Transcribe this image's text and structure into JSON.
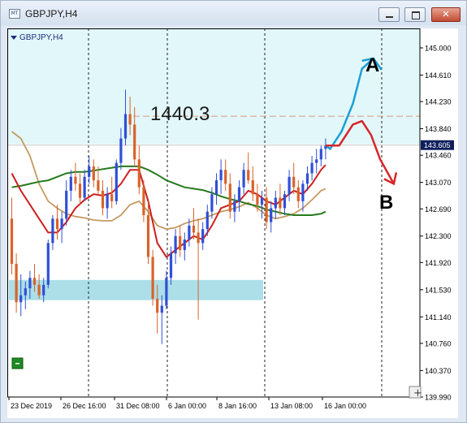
{
  "window": {
    "title": "GBPJPY,H4",
    "app_icon_label": "MT",
    "minimize_icon": "minimize-icon",
    "maximize_icon": "maximize-icon",
    "close_icon": "close-icon"
  },
  "chart_data": {
    "type": "candlestick",
    "symbol_label": "GBPJPY,H4",
    "y_ticks": [
      "145.000",
      "144.610",
      "144.230",
      "143.840",
      "143.460",
      "143.070",
      "142.690",
      "142.300",
      "141.920",
      "141.530",
      "141.140",
      "140.760",
      "140.370",
      "139.990"
    ],
    "y_range": [
      139.99,
      145.0
    ],
    "current_price": "143.605",
    "x_ticks": [
      "23 Dec 2019",
      "26 Dec 16:00",
      "31 Dec 08:00",
      "6 Jan 00:00",
      "8 Jan 16:00",
      "13 Jan 08:00",
      "16 Jan 00:00"
    ],
    "annotations": {
      "level_label": "1440.3",
      "scenario_a": "A",
      "scenario_b": "B"
    },
    "indicator_colors": {
      "ema_fast": "#cc1f1f",
      "ema_mid": "#c49a62",
      "ema_slow": "#267a1e"
    },
    "colors": {
      "bullish_candle": "#2f4fd6",
      "bearish_candle": "#d9632a",
      "supply_zone": "#e2f7f9",
      "demand_zone": "#acdfe7",
      "arrow_a": "#1a9fd4",
      "arrow_b": "#d6262a",
      "resistance_line": "#d99a80"
    },
    "candles": [
      [
        142.55,
        142.85,
        141.75,
        141.9
      ],
      [
        141.9,
        142.05,
        141.2,
        141.35
      ],
      [
        141.35,
        141.75,
        141.15,
        141.45
      ],
      [
        141.45,
        141.65,
        141.25,
        141.55
      ],
      [
        141.55,
        141.8,
        141.4,
        141.7
      ],
      [
        141.7,
        141.9,
        141.5,
        141.6
      ],
      [
        141.6,
        141.75,
        141.4,
        141.45
      ],
      [
        141.45,
        141.7,
        141.35,
        141.6
      ],
      [
        141.6,
        142.25,
        141.55,
        142.2
      ],
      [
        142.2,
        142.6,
        142.1,
        142.55
      ],
      [
        142.55,
        142.75,
        142.25,
        142.4
      ],
      [
        142.4,
        142.65,
        142.2,
        142.55
      ],
      [
        142.55,
        143.1,
        142.45,
        142.95
      ],
      [
        142.95,
        143.25,
        142.8,
        143.15
      ],
      [
        143.15,
        143.35,
        142.95,
        143.05
      ],
      [
        143.05,
        143.2,
        142.75,
        142.85
      ],
      [
        142.85,
        143.25,
        142.8,
        143.15
      ],
      [
        143.15,
        143.45,
        143.05,
        143.3
      ],
      [
        143.3,
        143.4,
        143.0,
        143.1
      ],
      [
        143.1,
        143.3,
        142.9,
        142.95
      ],
      [
        142.95,
        143.1,
        142.6,
        142.7
      ],
      [
        142.7,
        143.0,
        142.55,
        142.9
      ],
      [
        142.9,
        143.15,
        142.7,
        142.8
      ],
      [
        142.8,
        143.4,
        142.75,
        143.35
      ],
      [
        143.35,
        143.85,
        143.25,
        143.7
      ],
      [
        143.7,
        144.4,
        143.6,
        144.05
      ],
      [
        144.05,
        144.3,
        143.75,
        143.9
      ],
      [
        143.9,
        144.15,
        143.3,
        143.4
      ],
      [
        143.4,
        143.6,
        142.9,
        143.0
      ],
      [
        143.0,
        143.1,
        142.5,
        142.6
      ],
      [
        142.6,
        142.8,
        141.9,
        142.0
      ],
      [
        142.0,
        142.1,
        141.3,
        141.4
      ],
      [
        141.4,
        141.6,
        140.9,
        141.2
      ],
      [
        141.2,
        141.45,
        140.75,
        141.3
      ],
      [
        141.3,
        141.8,
        141.25,
        141.7
      ],
      [
        141.7,
        142.15,
        141.6,
        142.05
      ],
      [
        142.05,
        142.4,
        141.9,
        142.3
      ],
      [
        142.3,
        142.45,
        142.0,
        142.1
      ],
      [
        142.1,
        142.35,
        141.95,
        142.25
      ],
      [
        142.25,
        142.55,
        142.15,
        142.45
      ],
      [
        142.45,
        142.7,
        142.25,
        142.35
      ],
      [
        142.35,
        142.55,
        141.1,
        142.2
      ],
      [
        142.2,
        142.5,
        142.1,
        142.4
      ],
      [
        142.4,
        142.75,
        142.3,
        142.65
      ],
      [
        142.65,
        143.0,
        142.55,
        142.9
      ],
      [
        142.9,
        143.2,
        142.75,
        143.1
      ],
      [
        143.1,
        143.4,
        142.9,
        143.25
      ],
      [
        143.25,
        143.4,
        142.95,
        143.05
      ],
      [
        143.05,
        143.2,
        142.55,
        142.65
      ],
      [
        142.65,
        142.9,
        142.5,
        142.8
      ],
      [
        142.8,
        143.1,
        142.65,
        143.0
      ],
      [
        143.0,
        143.35,
        142.9,
        143.25
      ],
      [
        143.25,
        143.5,
        143.05,
        143.1
      ],
      [
        143.1,
        143.3,
        142.8,
        142.9
      ],
      [
        142.9,
        143.05,
        142.65,
        142.75
      ],
      [
        142.75,
        142.95,
        142.55,
        142.85
      ],
      [
        142.85,
        143.0,
        142.4,
        142.5
      ],
      [
        142.5,
        142.8,
        142.35,
        142.7
      ],
      [
        142.7,
        142.95,
        142.55,
        142.85
      ],
      [
        142.85,
        143.05,
        142.6,
        142.7
      ],
      [
        142.7,
        142.95,
        142.6,
        142.9
      ],
      [
        142.9,
        143.25,
        142.8,
        143.15
      ],
      [
        143.15,
        143.35,
        142.9,
        143.0
      ],
      [
        143.0,
        143.1,
        142.7,
        142.8
      ],
      [
        142.8,
        143.1,
        142.65,
        143.05
      ],
      [
        143.05,
        143.3,
        142.95,
        143.2
      ],
      [
        143.2,
        143.45,
        143.1,
        143.35
      ],
      [
        143.35,
        143.55,
        143.2,
        143.4
      ],
      [
        143.4,
        143.6,
        143.3,
        143.55
      ],
      [
        143.55,
        143.7,
        143.4,
        143.6
      ]
    ],
    "ema_fast": [
      [
        0,
        143.2
      ],
      [
        2,
        142.95
      ],
      [
        4,
        142.75
      ],
      [
        6,
        142.55
      ],
      [
        8,
        142.35
      ],
      [
        10,
        142.35
      ],
      [
        12,
        142.5
      ],
      [
        14,
        142.7
      ],
      [
        16,
        142.82
      ],
      [
        18,
        142.9
      ],
      [
        20,
        142.88
      ],
      [
        22,
        142.92
      ],
      [
        24,
        143.05
      ],
      [
        26,
        143.25
      ],
      [
        28,
        143.25
      ],
      [
        30,
        142.8
      ],
      [
        32,
        142.2
      ],
      [
        34,
        142.0
      ],
      [
        36,
        142.1
      ],
      [
        38,
        142.2
      ],
      [
        40,
        142.3
      ],
      [
        42,
        142.25
      ],
      [
        44,
        142.45
      ],
      [
        46,
        142.7
      ],
      [
        48,
        142.75
      ],
      [
        50,
        142.8
      ],
      [
        52,
        142.95
      ],
      [
        54,
        142.9
      ],
      [
        56,
        142.8
      ],
      [
        58,
        142.75
      ],
      [
        60,
        142.85
      ],
      [
        62,
        142.95
      ],
      [
        64,
        142.9
      ],
      [
        66,
        143.05
      ],
      [
        68,
        143.25
      ],
      [
        69,
        143.32
      ]
    ],
    "ema_mid": [
      [
        0,
        143.8
      ],
      [
        2,
        143.7
      ],
      [
        4,
        143.45
      ],
      [
        6,
        143.05
      ],
      [
        8,
        142.8
      ],
      [
        10,
        142.7
      ],
      [
        12,
        142.62
      ],
      [
        14,
        142.58
      ],
      [
        16,
        142.56
      ],
      [
        18,
        142.53
      ],
      [
        20,
        142.52
      ],
      [
        22,
        142.52
      ],
      [
        24,
        142.6
      ],
      [
        26,
        142.75
      ],
      [
        28,
        142.8
      ],
      [
        30,
        142.65
      ],
      [
        32,
        142.45
      ],
      [
        34,
        142.4
      ],
      [
        36,
        142.42
      ],
      [
        38,
        142.48
      ],
      [
        40,
        142.52
      ],
      [
        42,
        142.55
      ],
      [
        44,
        142.6
      ],
      [
        46,
        142.65
      ],
      [
        48,
        142.68
      ],
      [
        50,
        142.72
      ],
      [
        52,
        142.78
      ],
      [
        54,
        142.7
      ],
      [
        56,
        142.6
      ],
      [
        58,
        142.55
      ],
      [
        60,
        142.58
      ],
      [
        62,
        142.62
      ],
      [
        64,
        142.7
      ],
      [
        66,
        142.82
      ],
      [
        68,
        142.95
      ],
      [
        69,
        142.98
      ]
    ],
    "ema_slow": [
      [
        0,
        143.0
      ],
      [
        2,
        143.02
      ],
      [
        4,
        143.05
      ],
      [
        6,
        143.08
      ],
      [
        8,
        143.1
      ],
      [
        10,
        143.15
      ],
      [
        12,
        143.2
      ],
      [
        14,
        143.22
      ],
      [
        16,
        143.22
      ],
      [
        18,
        143.24
      ],
      [
        20,
        143.26
      ],
      [
        22,
        143.28
      ],
      [
        24,
        143.3
      ],
      [
        26,
        143.3
      ],
      [
        28,
        143.3
      ],
      [
        30,
        143.25
      ],
      [
        32,
        143.18
      ],
      [
        34,
        143.1
      ],
      [
        36,
        143.05
      ],
      [
        38,
        143.0
      ],
      [
        40,
        142.98
      ],
      [
        42,
        142.96
      ],
      [
        44,
        142.92
      ],
      [
        46,
        142.87
      ],
      [
        48,
        142.83
      ],
      [
        50,
        142.8
      ],
      [
        52,
        142.76
      ],
      [
        54,
        142.73
      ],
      [
        56,
        142.68
      ],
      [
        58,
        142.65
      ],
      [
        60,
        142.62
      ],
      [
        62,
        142.6
      ],
      [
        64,
        142.6
      ],
      [
        66,
        142.6
      ],
      [
        68,
        142.62
      ],
      [
        69,
        142.65
      ]
    ],
    "projection_a": [
      [
        69,
        143.6
      ],
      [
        70,
        143.55
      ],
      [
        72.5,
        143.8
      ],
      [
        75,
        144.2
      ],
      [
        77,
        144.7
      ],
      [
        79.5,
        144.85
      ]
    ],
    "projection_b": [
      [
        69,
        143.6
      ],
      [
        72,
        143.6
      ],
      [
        75,
        143.9
      ],
      [
        77,
        143.95
      ],
      [
        79,
        143.75
      ],
      [
        81,
        143.4
      ],
      [
        84,
        143.05
      ]
    ]
  }
}
